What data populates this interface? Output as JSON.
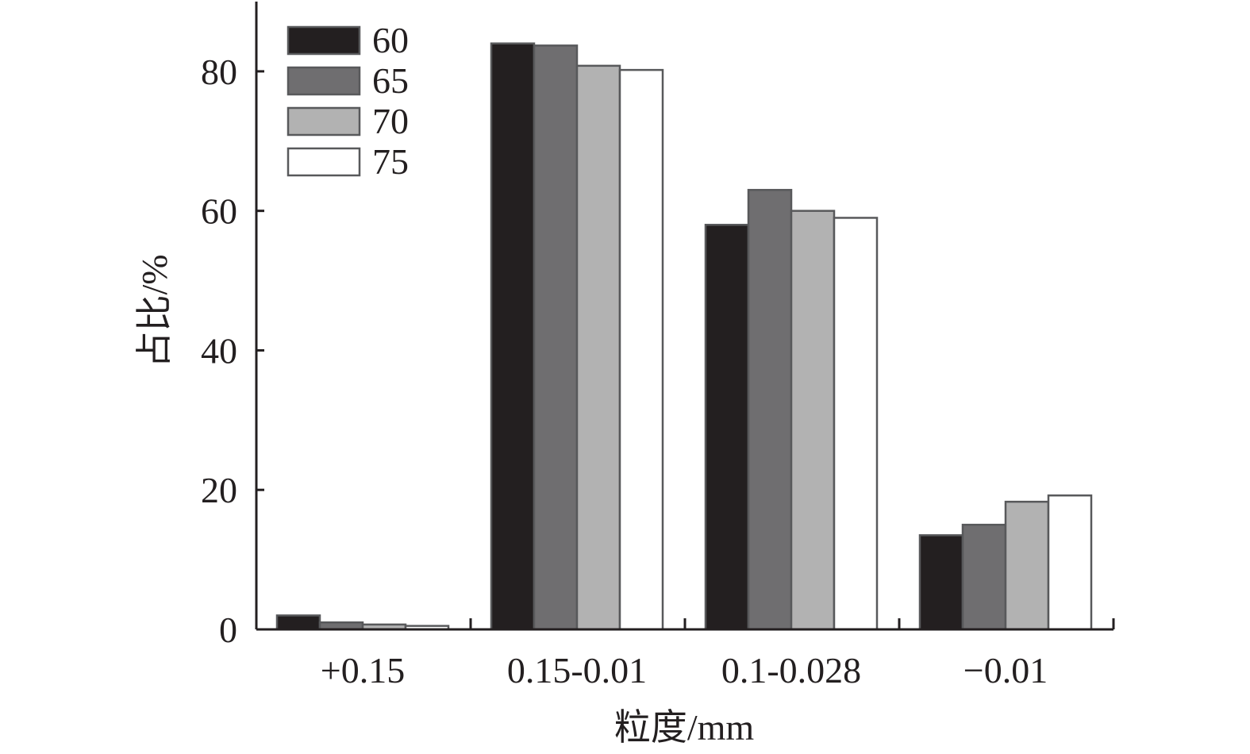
{
  "chart_data": {
    "type": "bar",
    "title": "",
    "xlabel": "粒度/mm",
    "ylabel": "占比/%",
    "categories": [
      "+0.15",
      "0.15-0.01",
      "0.1-0.028",
      "−0.01"
    ],
    "series": [
      {
        "name": "60",
        "values": [
          2.0,
          84.0,
          58.0,
          13.5
        ],
        "color": "#231f20"
      },
      {
        "name": "65",
        "values": [
          1.0,
          83.7,
          63.0,
          15.0
        ],
        "color": "#6f6e70"
      },
      {
        "name": "70",
        "values": [
          0.7,
          80.8,
          60.0,
          18.3
        ],
        "color": "#b2b2b2"
      },
      {
        "name": "75",
        "values": [
          0.5,
          80.2,
          59.0,
          19.2
        ],
        "color": "#ffffff"
      }
    ],
    "ylim": [
      0,
      90
    ],
    "yticks": [
      0,
      20,
      40,
      60,
      80
    ],
    "grid": false,
    "legend_position": "top-left"
  }
}
